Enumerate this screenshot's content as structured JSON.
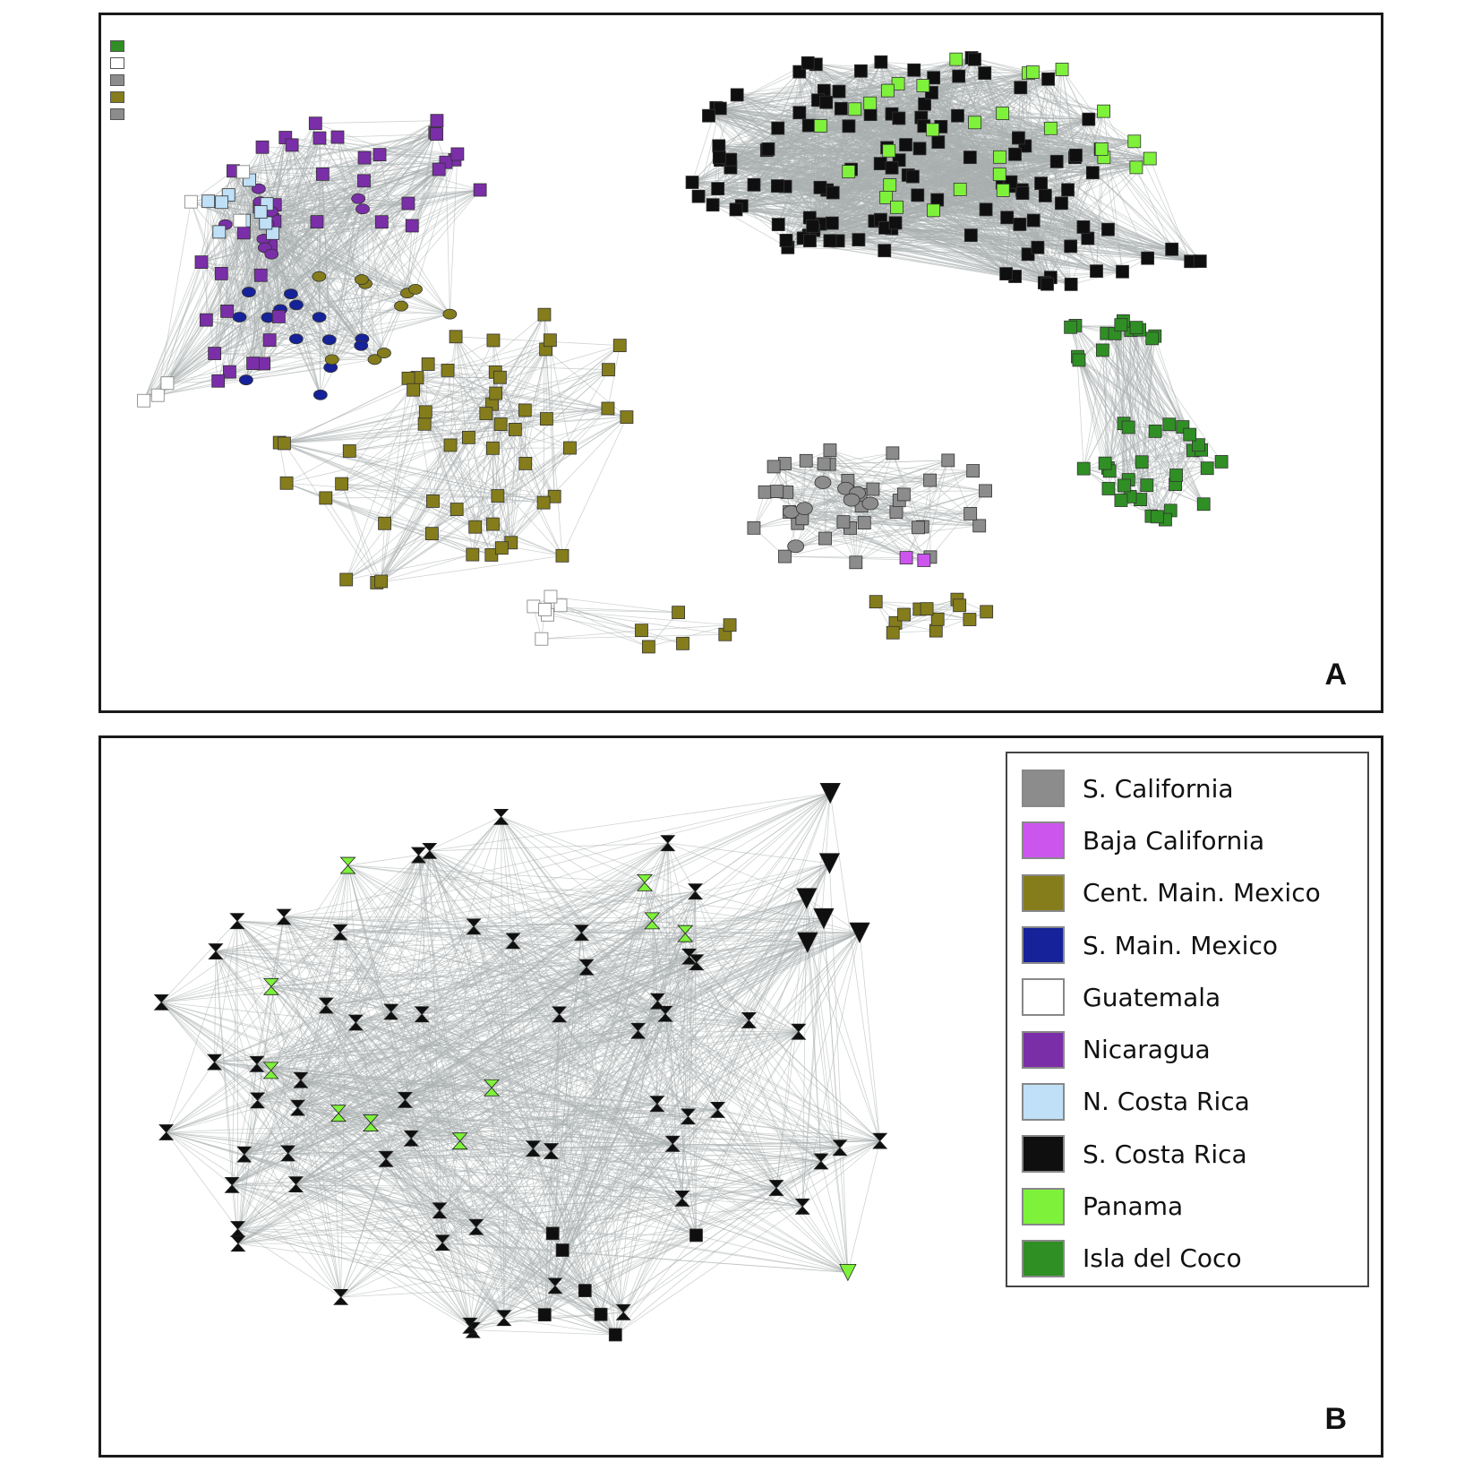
{
  "panel_a": {
    "letter": "A"
  },
  "panel_b": {
    "letter": "B"
  },
  "legend": {
    "items": [
      {
        "label": "S. California",
        "color": "#8c8c8c"
      },
      {
        "label": "Baja California",
        "color": "#cc55ee"
      },
      {
        "label": "Cent. Main. Mexico",
        "color": "#857d1c"
      },
      {
        "label": "S. Main. Mexico",
        "color": "#16229a"
      },
      {
        "label": "Guatemala",
        "color": "#ffffff"
      },
      {
        "label": "Nicaragua",
        "color": "#7a2ea8"
      },
      {
        "label": "N. Costa Rica",
        "color": "#bfe0f6"
      },
      {
        "label": "S. Costa Rica",
        "color": "#0f0f0f"
      },
      {
        "label": "Panama",
        "color": "#7ef23a"
      },
      {
        "label": "Isla del Coco",
        "color": "#2f8f24"
      }
    ]
  },
  "mini_legend_colors": [
    "#2f8f24",
    "#ffffff",
    "#8c8c8c",
    "#857d1c",
    "#8c8c8c"
  ],
  "edge_color": "#a9aeae"
}
